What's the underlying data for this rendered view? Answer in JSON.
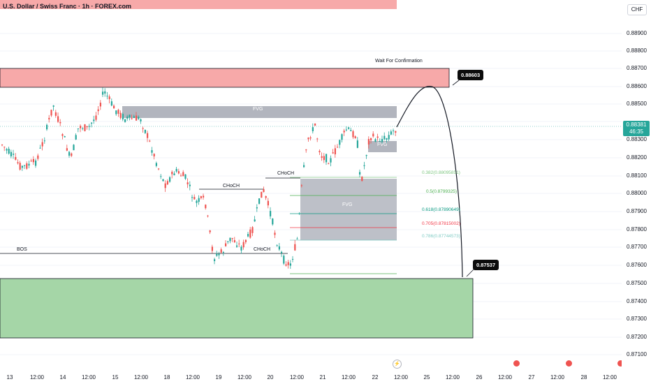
{
  "symbol": {
    "title": "U.S. Dollar / Swiss Franc · 1h · FOREX.com"
  },
  "price_axis": {
    "currency": "CHF",
    "ticks": [
      "0.88900",
      "0.88800",
      "0.88700",
      "0.88600",
      "0.88500",
      "0.88300",
      "0.88200",
      "0.88100",
      "0.88000",
      "0.87900",
      "0.87800",
      "0.87700",
      "0.87600",
      "0.87500",
      "0.87400",
      "0.87300",
      "0.87200",
      "0.87100"
    ],
    "last_price": "0.88381",
    "countdown": "46:35"
  },
  "time_axis": [
    "13",
    "12:00",
    "14",
    "12:00",
    "15",
    "12:00",
    "18",
    "12:00",
    "19",
    "12:00",
    "20",
    "12:00",
    "21",
    "12:00",
    "22",
    "12:00",
    "25",
    "12:00",
    "26",
    "12:00",
    "27",
    "12:00",
    "28",
    "12:00"
  ],
  "annotations": {
    "wait": "Wait For Confirmation",
    "target_high": "0.88603",
    "target_low": "0.87537",
    "fvg_upper": "FVG",
    "fvg_lower": "FVG",
    "fvg_small": "FVG",
    "bos": "BOS",
    "choch_1": "CHoCH",
    "choch_2": "CHoCH",
    "choch_3": "CHoCH"
  },
  "fib_levels": [
    {
      "label": "0.382(0.88095851)",
      "color": "#81c784"
    },
    {
      "label": "0.5(0.8799325)",
      "color": "#4caf50"
    },
    {
      "label": "0.618(0.87890649)",
      "color": "#089981"
    },
    {
      "label": "0.705(0.87815002)",
      "color": "#f23645"
    },
    {
      "label": "0.786(0.87744573)",
      "color": "#80cbc4"
    }
  ],
  "colors": {
    "up": "#26a69a",
    "down": "#ef5350",
    "resistance_zone": "#f7a9a9",
    "support_zone": "#a5d6a7",
    "fvg_zone": "#b2b5be"
  }
}
